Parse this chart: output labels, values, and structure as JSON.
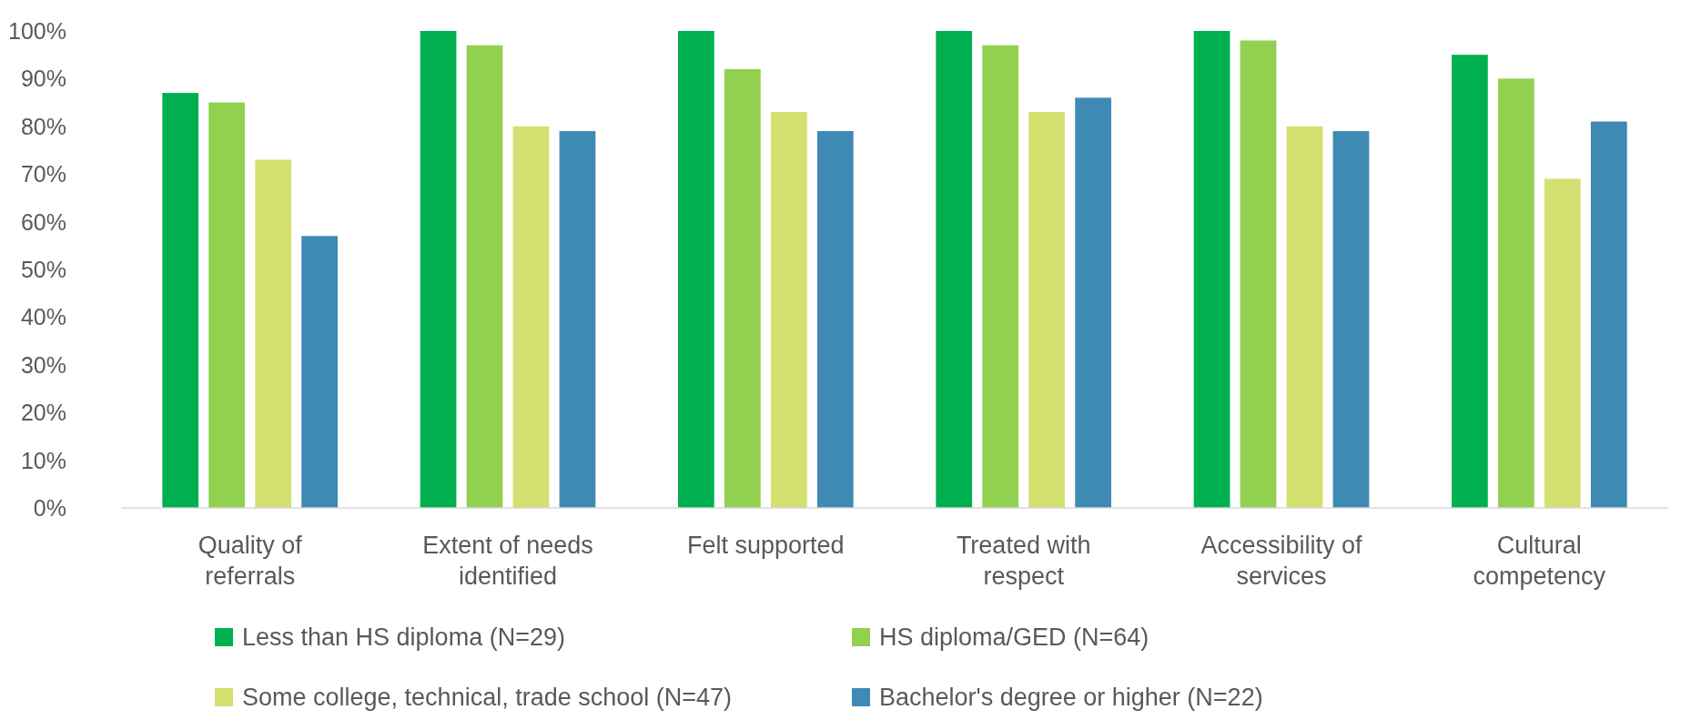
{
  "chart_data": {
    "type": "bar",
    "categories": [
      "Quality of referrals",
      "Extent of needs identified",
      "Felt supported",
      "Treated with respect",
      "Accessibility of services",
      "Cultural competency"
    ],
    "series": [
      {
        "name": "Less than HS diploma (N=29)",
        "color": "#00b050",
        "values": [
          87,
          100,
          100,
          100,
          100,
          95
        ]
      },
      {
        "name": "HS diploma/GED (N=64)",
        "color": "#92d050",
        "values": [
          85,
          97,
          92,
          97,
          98,
          90
        ]
      },
      {
        "name": "Some college, technical, trade school (N=47)",
        "color": "#d4e06f",
        "values": [
          73,
          80,
          83,
          83,
          80,
          69
        ]
      },
      {
        "name": "Bachelor's degree or higher (N=22)",
        "color": "#3f8ab5",
        "values": [
          57,
          79,
          79,
          86,
          79,
          81
        ]
      }
    ],
    "ylim": [
      0,
      100
    ],
    "yticks": [
      {
        "value": 0,
        "label": "0%"
      },
      {
        "value": 10,
        "label": "10%"
      },
      {
        "value": 20,
        "label": "20%"
      },
      {
        "value": 30,
        "label": "30%"
      },
      {
        "value": 40,
        "label": "40%"
      },
      {
        "value": 50,
        "label": "50%"
      },
      {
        "value": 60,
        "label": "60%"
      },
      {
        "value": 70,
        "label": "70%"
      },
      {
        "value": 80,
        "label": "80%"
      },
      {
        "value": 90,
        "label": "90%"
      },
      {
        "value": 100,
        "label": "100%"
      }
    ],
    "grid": false,
    "legend": "bottom"
  }
}
